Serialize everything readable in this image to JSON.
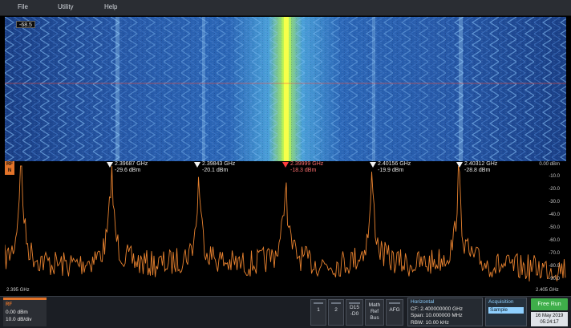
{
  "menu": {
    "file": "File",
    "utility": "Utility",
    "help": "Help"
  },
  "spectrogram": {
    "ref_value": "-68.5"
  },
  "spectrum": {
    "rf_badge_line1": "RF",
    "rf_badge_line2": "N",
    "start_freq": "2.395 GHz",
    "stop_freq": "2.405 GHz",
    "y_axis_labels": [
      "0.00 dBm",
      "-10.0",
      "-20.0",
      "-30.0",
      "-40.0",
      "-50.0",
      "-60.0",
      "-70.0",
      "-80.0",
      "-90.0"
    ],
    "markers": [
      {
        "freq": "2.39687 GHz",
        "level": "-29.6 dBm",
        "active": false
      },
      {
        "freq": "2.39843 GHz",
        "level": "-20.1 dBm",
        "active": false
      },
      {
        "freq": "2.39999 GHz",
        "level": "-18.3 dBm",
        "active": true
      },
      {
        "freq": "2.40156 GHz",
        "level": "-19.9 dBm",
        "active": false
      },
      {
        "freq": "2.40312 GHz",
        "level": "-28.8 dBm",
        "active": false
      }
    ],
    "trace_color": "#e8822f"
  },
  "bottom": {
    "rf_panel": {
      "title": "RF",
      "ref_level": "0.00 dBm",
      "scale": "10.0 dB/div"
    },
    "buttons": {
      "ch1": "1",
      "ch2": "2",
      "d15_line1": "D15",
      "d15_line2": "-D0",
      "math_line1": "Math",
      "math_line2": "Ref",
      "math_line3": "Bus",
      "afg": "AFG"
    },
    "horizontal": {
      "title": "Horizontal",
      "cf": "CF:   2.400000000 GHz",
      "span": "Span: 10.000000 MHz",
      "rbw": "RBW: 10.00 kHz"
    },
    "acquisition": {
      "title": "Acquisition",
      "mode": "Sample"
    },
    "free_run": "Free Run",
    "date": "16 May 2019",
    "time": "05:24:17"
  },
  "colors": {
    "accent_orange": "#e3742a",
    "free_run_green": "#3fae4a",
    "panel_blue": "#8fd0ff"
  }
}
